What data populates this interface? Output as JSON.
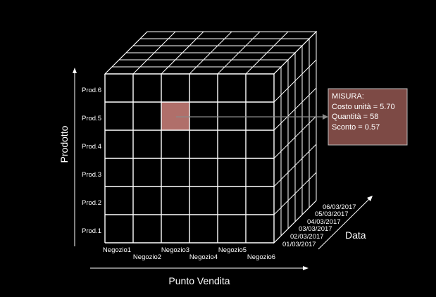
{
  "products": [
    "Prod.1",
    "Prod.2",
    "Prod.3",
    "Prod.4",
    "Prod.5",
    "Prod.6"
  ],
  "stores": [
    "Negozio1",
    "Negozio2",
    "Negozio3",
    "Negozio4",
    "Negozio5",
    "Negozio6"
  ],
  "dates": [
    "01/03/2017",
    "02/03/2017",
    "03/03/2017",
    "04/03/2017",
    "05/03/2017",
    "06/03/2017"
  ],
  "axes": {
    "vertical": "Prodotto",
    "horizontal": "Punto Vendita",
    "depth": "Data"
  },
  "highlight": {
    "product": "Prod.5",
    "store": "Negozio3",
    "color": "#b06f6a"
  },
  "measure": {
    "title": "MISURA:",
    "lines": [
      "Costo unità = 5.70",
      "Quantità = 58",
      "Sconto = 0.57"
    ],
    "fill": "#7d4a45"
  }
}
